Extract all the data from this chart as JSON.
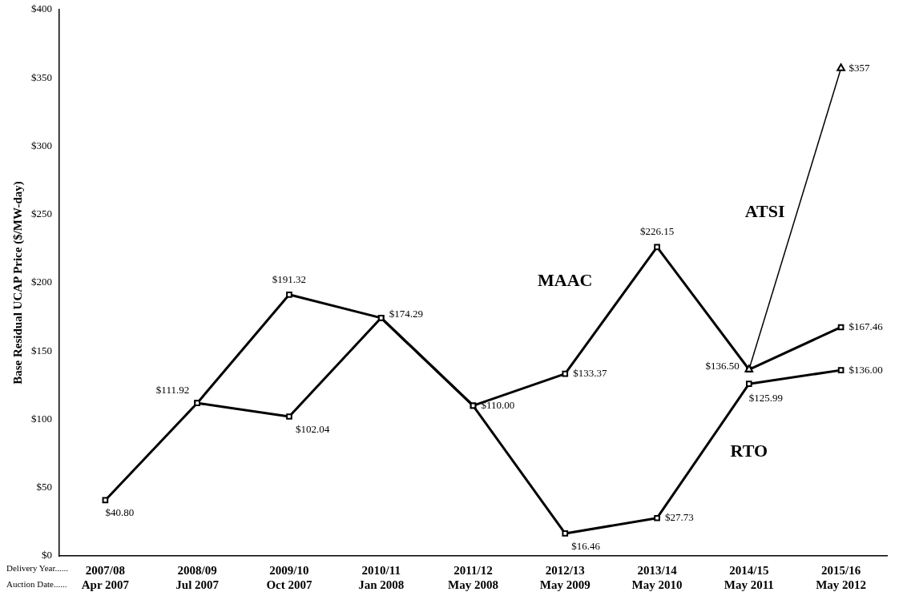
{
  "chart_data": {
    "type": "line",
    "ylabel": "Base Residual UCAP Price ($/MW-day)",
    "categories": [
      "2007/08\nApr 2007",
      "2008/09\nJul 2007",
      "2009/10\nOct 2007",
      "2010/11\nJan 2008",
      "2011/12\nMay 2008",
      "2012/13\nMay 2009",
      "2013/14\nMay 2010",
      "2014/15\nMay 2011",
      "2015/16\nMay 2012"
    ],
    "series": [
      {
        "name": "RTO",
        "color": "#000000",
        "marker": "square",
        "values": [
          40.8,
          111.92,
          102.04,
          174.29,
          110.0,
          16.46,
          27.73,
          125.99,
          136.0
        ],
        "value_labels": [
          "$40.80",
          "$111.92",
          "$102.04",
          "$174.29",
          "$110.00",
          "$16.46",
          "$27.73",
          "$125.99",
          "$136.00"
        ]
      },
      {
        "name": "MAAC",
        "color": "#000000",
        "marker": "square",
        "values": [
          null,
          111.92,
          191.32,
          174.29,
          110.0,
          133.37,
          226.15,
          136.5,
          167.46
        ],
        "value_labels": [
          null,
          null,
          "$191.32",
          null,
          null,
          "$133.37",
          "$226.15",
          "$136.50",
          "$167.46"
        ]
      },
      {
        "name": "ATSI",
        "color": "#000000",
        "marker": "triangle",
        "values": [
          null,
          null,
          null,
          null,
          null,
          null,
          null,
          136.5,
          357
        ],
        "value_labels": [
          null,
          null,
          null,
          null,
          null,
          null,
          null,
          null,
          "$357"
        ]
      }
    ],
    "ylim": [
      0,
      400
    ],
    "yticks": [
      {
        "value": 0,
        "label": "$0"
      },
      {
        "value": 50,
        "label": "$50"
      },
      {
        "value": 100,
        "label": "$100"
      },
      {
        "value": 150,
        "label": "$150"
      },
      {
        "value": 200,
        "label": "$200"
      },
      {
        "value": 250,
        "label": "$250"
      },
      {
        "value": 300,
        "label": "$300"
      },
      {
        "value": 350,
        "label": "$350"
      },
      {
        "value": 400,
        "label": "$400"
      }
    ],
    "annotations": [
      "Delivery Year......",
      "Auction Date......"
    ],
    "grid": false,
    "legend": false,
    "line_style": "solid"
  }
}
